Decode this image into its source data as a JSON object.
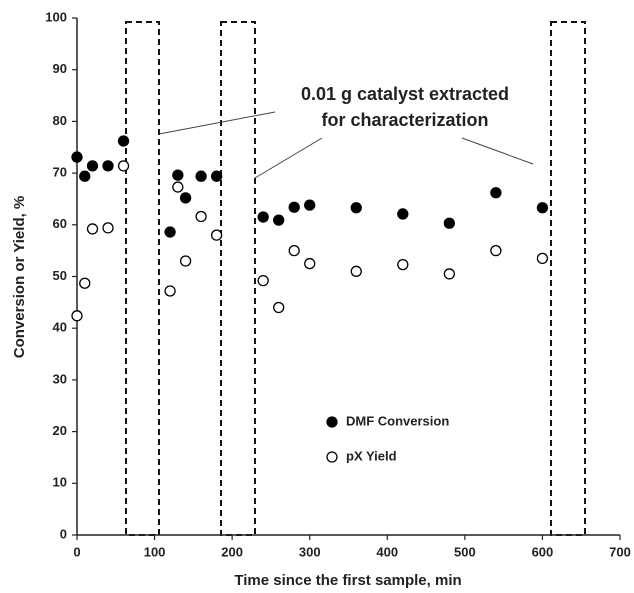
{
  "chart_data": {
    "type": "scatter",
    "x_label": "Time since the first sample, min",
    "y_label": "Conversion or Yield, %",
    "annotation": [
      "0.01 g catalyst extracted",
      "for characterization"
    ],
    "xlim": [
      0,
      700
    ],
    "xticks": [
      0,
      100,
      200,
      300,
      400,
      500,
      600,
      700
    ],
    "ylim": [
      0,
      100
    ],
    "yticks": [
      0,
      10,
      20,
      30,
      40,
      50,
      60,
      70,
      80,
      90,
      100
    ],
    "grid": false,
    "series": [
      {
        "name": "DMF Conversion",
        "color": "#000000",
        "marker": "filled",
        "x": [
          0,
          10,
          20,
          40,
          60,
          120,
          130,
          140,
          160,
          180,
          240,
          260,
          280,
          300,
          360,
          420,
          480,
          540,
          600
        ],
        "values": [
          73.1,
          69.4,
          71.4,
          71.4,
          76.2,
          58.6,
          69.6,
          65.2,
          69.4,
          69.4,
          61.5,
          60.9,
          63.4,
          63.8,
          63.3,
          62.1,
          60.3,
          66.2,
          63.3
        ]
      },
      {
        "name": "pX Yield",
        "color": "#000000",
        "marker": "open",
        "x": [
          0,
          10,
          20,
          40,
          60,
          120,
          130,
          140,
          160,
          180,
          240,
          260,
          280,
          300,
          360,
          420,
          480,
          540,
          600
        ],
        "values": [
          42.4,
          48.7,
          59.2,
          59.4,
          71.4,
          47.2,
          67.3,
          53.0,
          61.6,
          58.0,
          49.2,
          44.0,
          55.0,
          52.5,
          51.0,
          52.3,
          50.5,
          55.0,
          53.5
        ]
      }
    ]
  }
}
